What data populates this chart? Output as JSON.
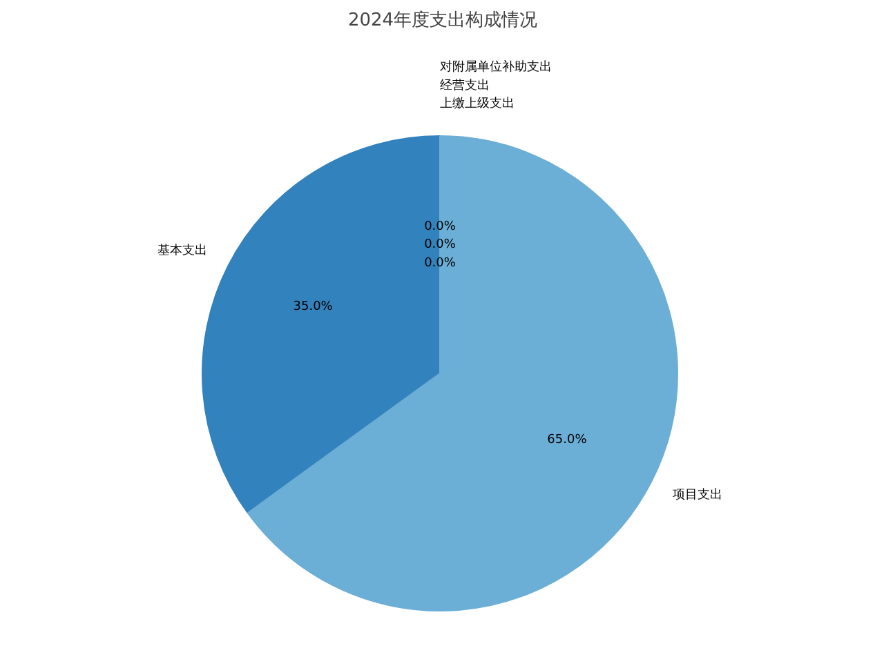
{
  "chart_data": {
    "type": "pie",
    "title": "2024年度支出构成情况",
    "categories": [
      "基本支出",
      "项目支出",
      "上缴上级支出",
      "经营支出",
      "对附属单位补助支出"
    ],
    "values": [
      35.0,
      65.0,
      0,
      0,
      0
    ],
    "colors": [
      "#3182bd",
      "#6baed6",
      "#9ecae1",
      "#c6dbef",
      "#08519c"
    ],
    "value_labels": [
      "35.0%",
      "65.0%",
      "0.0%",
      "0.0%",
      "0.0%"
    ]
  }
}
